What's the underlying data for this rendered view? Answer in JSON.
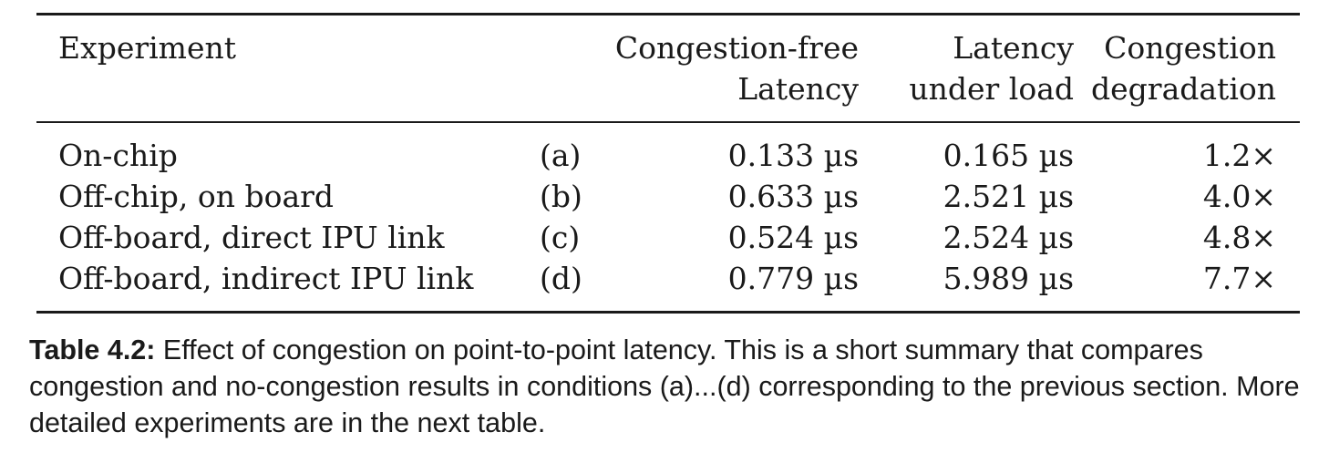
{
  "table": {
    "headers": {
      "experiment": "Experiment",
      "congestion_free": [
        "Congestion-free",
        "Latency"
      ],
      "latency_under_load": [
        "Latency",
        "under load"
      ],
      "congestion_degradation": [
        "Congestion",
        "degradation"
      ]
    },
    "rows": [
      {
        "experiment": "On-chip",
        "label": "(a)",
        "congestion_free": "0.133 µs",
        "under_load": "0.165 µs",
        "degradation": "1.2×"
      },
      {
        "experiment": "Off-chip, on board",
        "label": "(b)",
        "congestion_free": "0.633 µs",
        "under_load": "2.521 µs",
        "degradation": "4.0×"
      },
      {
        "experiment": "Off-board, direct IPU link",
        "label": "(c)",
        "congestion_free": "0.524 µs",
        "under_load": "2.524 µs",
        "degradation": "4.8×"
      },
      {
        "experiment": "Off-board, indirect IPU link",
        "label": "(d)",
        "congestion_free": "0.779 µs",
        "under_load": "5.989 µs",
        "degradation": "7.7×"
      }
    ]
  },
  "caption": {
    "label": "Table 4.2:",
    "text": " Effect of congestion on point-to-point latency. This is a short summary that compares congestion and no-congestion results in conditions (a)...(d) corresponding to the previous section. More detailed experiments are in the next table."
  }
}
